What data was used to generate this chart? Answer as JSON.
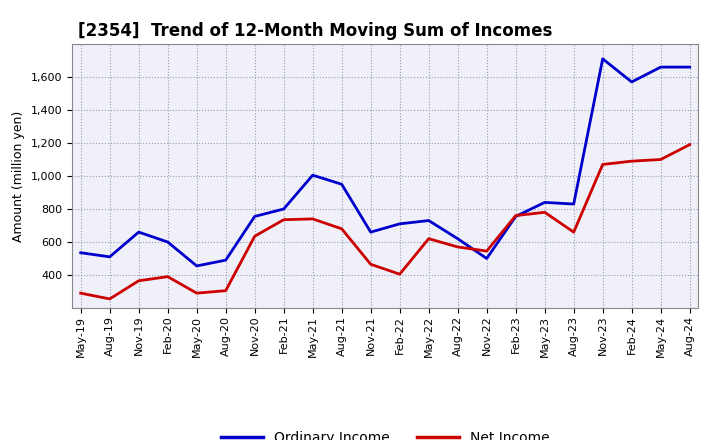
{
  "title": "[2354]  Trend of 12-Month Moving Sum of Incomes",
  "ylabel": "Amount (million yen)",
  "background_color": "#ffffff",
  "plot_bg_color": "#f0f0f8",
  "grid_color": "#9999bb",
  "x_labels": [
    "May-19",
    "Aug-19",
    "Nov-19",
    "Feb-20",
    "May-20",
    "Aug-20",
    "Nov-20",
    "Feb-21",
    "May-21",
    "Aug-21",
    "Nov-21",
    "Feb-22",
    "May-22",
    "Aug-22",
    "Nov-22",
    "Feb-23",
    "May-23",
    "Aug-23",
    "Nov-23",
    "Feb-24",
    "May-24",
    "Aug-24"
  ],
  "ordinary_income": [
    535,
    510,
    660,
    600,
    455,
    490,
    755,
    800,
    1005,
    950,
    660,
    710,
    730,
    620,
    500,
    755,
    840,
    830,
    1710,
    1570,
    1660,
    1660
  ],
  "net_income": [
    290,
    255,
    365,
    390,
    290,
    305,
    635,
    735,
    740,
    680,
    465,
    405,
    620,
    570,
    545,
    760,
    780,
    660,
    1070,
    1090,
    1100,
    1190
  ],
  "ordinary_income_color": "#0000cc",
  "net_income_color": "#cc0000",
  "ylim_min": 200,
  "ylim_max": 1800,
  "yticks": [
    400,
    600,
    800,
    1000,
    1200,
    1400,
    1600
  ],
  "legend_labels": [
    "Ordinary Income",
    "Net Income"
  ],
  "line_width": 2.0,
  "title_fontsize": 12,
  "ylabel_fontsize": 9,
  "tick_fontsize": 8
}
